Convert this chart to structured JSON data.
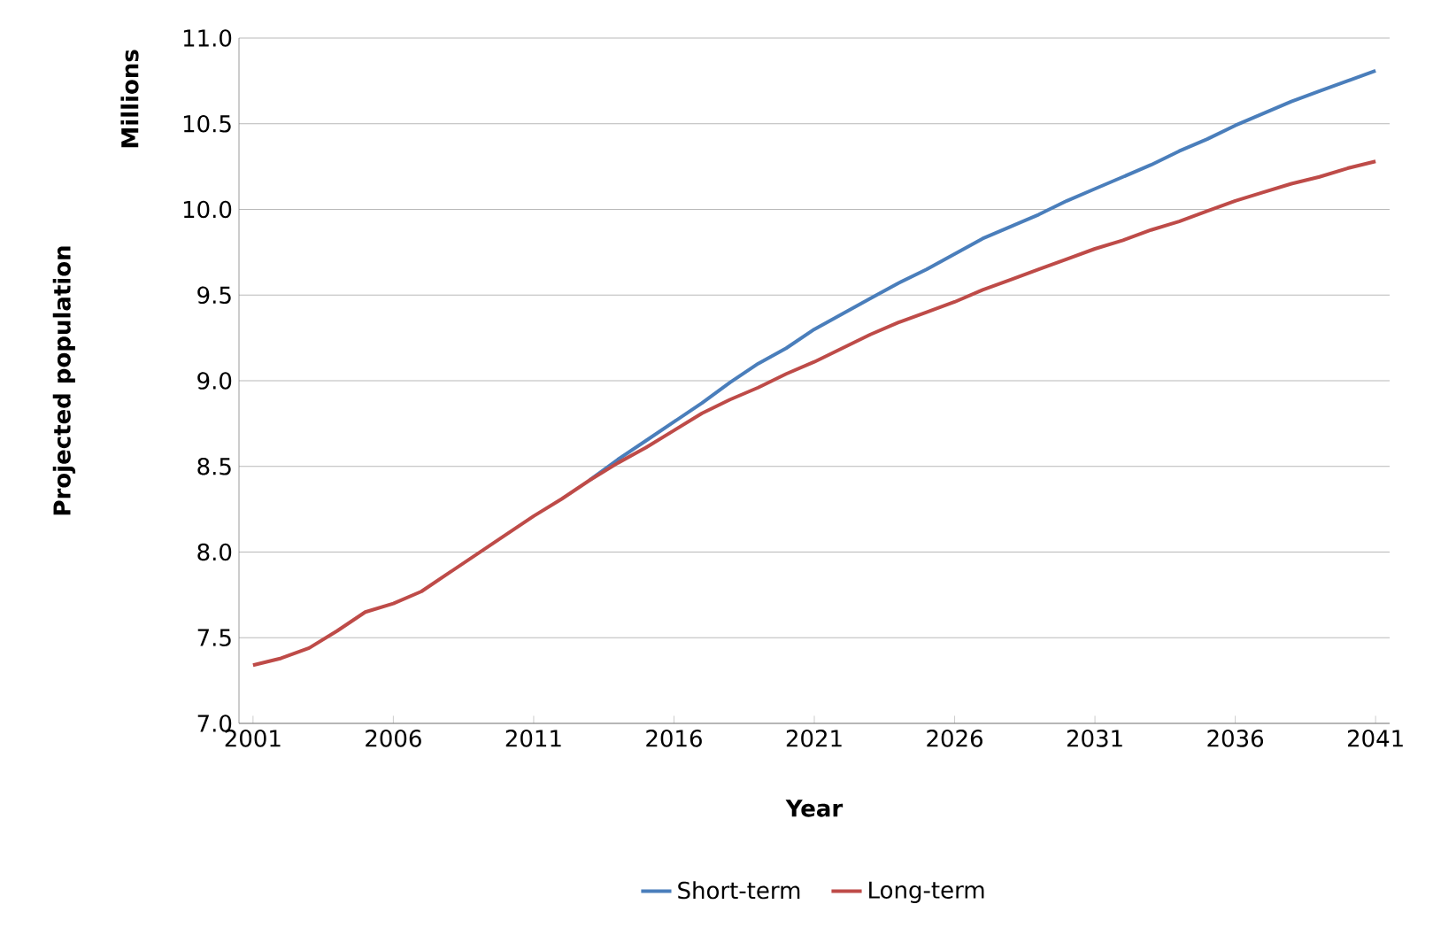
{
  "chart_data": {
    "type": "line",
    "xlabel": "Year",
    "ylabel": "Projected population",
    "annotations": [
      "Millions"
    ],
    "x": [
      2001,
      2002,
      2003,
      2004,
      2005,
      2006,
      2007,
      2008,
      2009,
      2010,
      2011,
      2012,
      2013,
      2014,
      2015,
      2016,
      2017,
      2018,
      2019,
      2020,
      2021,
      2022,
      2023,
      2024,
      2025,
      2026,
      2027,
      2028,
      2029,
      2030,
      2031,
      2032,
      2033,
      2034,
      2035,
      2036,
      2037,
      2038,
      2039,
      2040,
      2041
    ],
    "xlim": [
      2000.5,
      2041.5
    ],
    "xticks": [
      2001,
      2006,
      2011,
      2016,
      2021,
      2026,
      2031,
      2036,
      2041
    ],
    "ylim": [
      7.0,
      11.0
    ],
    "yticks": [
      {
        "value": 7.0,
        "label": "7.0"
      },
      {
        "value": 7.5,
        "label": "7.5"
      },
      {
        "value": 8.0,
        "label": "8.0"
      },
      {
        "value": 8.5,
        "label": "8.5"
      },
      {
        "value": 9.0,
        "label": "9.0"
      },
      {
        "value": 9.5,
        "label": "9.5"
      },
      {
        "value": 10.0,
        "label": "10.0"
      },
      {
        "value": 10.5,
        "label": "10.5"
      },
      {
        "value": 11.0,
        "label": "11.0"
      }
    ],
    "grid": "y",
    "legend": "bottom",
    "series": [
      {
        "name": "Short-term",
        "color": "#4a7ebb",
        "values": [
          null,
          null,
          null,
          null,
          null,
          null,
          null,
          null,
          null,
          null,
          null,
          null,
          8.42,
          8.54,
          8.65,
          8.76,
          8.87,
          8.99,
          9.1,
          9.19,
          9.3,
          9.39,
          9.48,
          9.57,
          9.65,
          9.74,
          9.83,
          9.9,
          9.97,
          10.05,
          10.12,
          10.19,
          10.26,
          10.34,
          10.41,
          10.49,
          10.56,
          10.63,
          10.69,
          10.75,
          10.81
        ]
      },
      {
        "name": "Long-term",
        "color": "#be4b48",
        "values": [
          7.34,
          7.38,
          7.44,
          7.54,
          7.65,
          7.7,
          7.77,
          7.88,
          7.99,
          8.1,
          8.21,
          8.31,
          8.42,
          8.52,
          8.61,
          8.71,
          8.81,
          8.89,
          8.96,
          9.04,
          9.11,
          9.19,
          9.27,
          9.34,
          9.4,
          9.46,
          9.53,
          9.59,
          9.65,
          9.71,
          9.77,
          9.82,
          9.88,
          9.93,
          9.99,
          10.05,
          10.1,
          10.15,
          10.19,
          10.24,
          10.28
        ]
      }
    ]
  }
}
